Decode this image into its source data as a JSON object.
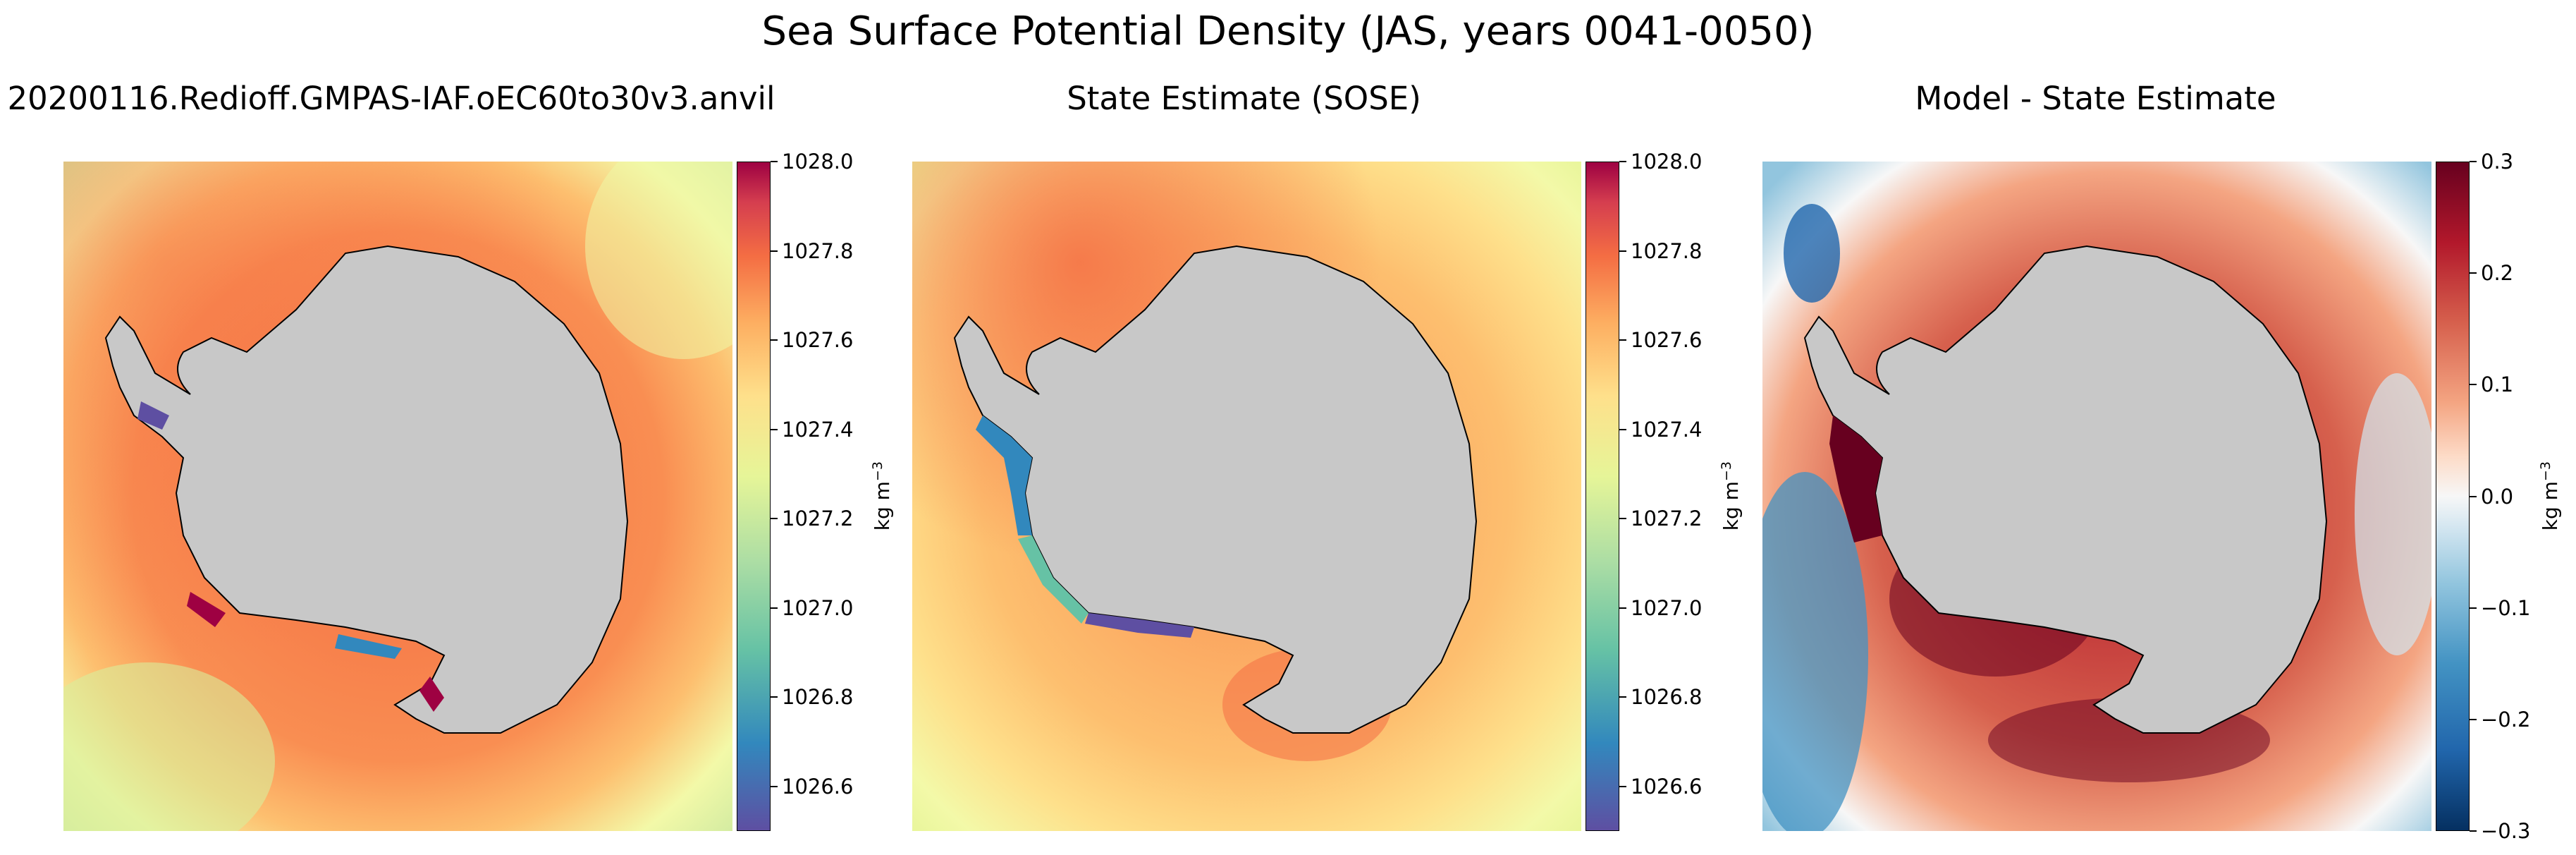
{
  "figure": {
    "suptitle": "Sea Surface Potential Density (JAS, years 0041-0050)"
  },
  "panels": [
    {
      "title": "20200116.Redioff.GMPAS-IAF.oEC60to30v3.anvil",
      "colorbar": {
        "cmap": "Spectral_r",
        "label_base": "kg m",
        "label_sup": "−3",
        "ticks": [
          "1028.0",
          "1027.8",
          "1027.6",
          "1027.4",
          "1027.2",
          "1027.0",
          "1026.8",
          "1026.6"
        ],
        "tick_values": [
          1028.0,
          1027.8,
          1027.6,
          1027.4,
          1027.2,
          1027.0,
          1026.8,
          1026.6
        ],
        "range": [
          1026.5,
          1028.0
        ]
      }
    },
    {
      "title": "State Estimate (SOSE)",
      "colorbar": {
        "cmap": "Spectral_r",
        "label_base": "kg m",
        "label_sup": "−3",
        "ticks": [
          "1028.0",
          "1027.8",
          "1027.6",
          "1027.4",
          "1027.2",
          "1027.0",
          "1026.8",
          "1026.6"
        ],
        "tick_values": [
          1028.0,
          1027.8,
          1027.6,
          1027.4,
          1027.2,
          1027.0,
          1026.8,
          1026.6
        ],
        "range": [
          1026.5,
          1028.0
        ]
      }
    },
    {
      "title": "Model - State Estimate",
      "colorbar": {
        "cmap": "RdBu_r",
        "label_base": "kg m",
        "label_sup": "−3",
        "ticks": [
          "0.3",
          "0.2",
          "0.1",
          "0.0",
          "−0.1",
          "−0.2",
          "−0.3"
        ],
        "tick_values": [
          0.3,
          0.2,
          0.1,
          0.0,
          -0.1,
          -0.2,
          -0.3
        ],
        "range": [
          -0.3,
          0.3
        ]
      }
    }
  ],
  "colors": {
    "land": "#c8c8c8",
    "coast": "#000000",
    "spectral_low": "#5e4fa2",
    "spectral_high": "#9e0142",
    "rdbu_low": "#053061",
    "rdbu_high": "#67001f"
  }
}
